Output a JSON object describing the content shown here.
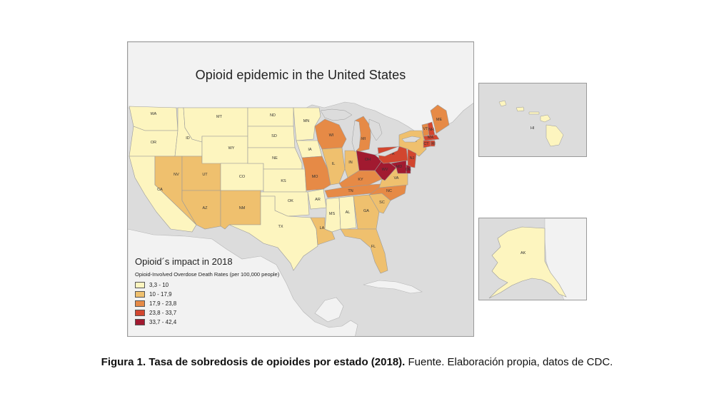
{
  "map": {
    "title": "Opioid epidemic in the United States",
    "colors": {
      "water": "#dcdcdc",
      "land_other": "#f2f2f2",
      "border": "#9a9a9a"
    }
  },
  "legend": {
    "title": "Opioid´s impact in 2018",
    "subtitle": "Opioid-Involved Overdose Death Rates (per 100,000 people)",
    "items": [
      {
        "label": "3,3 - 10",
        "color": "#fdf5bf"
      },
      {
        "label": "10 - 17,9",
        "color": "#efc06e"
      },
      {
        "label": "17,9 - 23,8",
        "color": "#e68a46"
      },
      {
        "label": "23,8 - 33,7",
        "color": "#d2462f"
      },
      {
        "label": "33,7 - 42,4",
        "color": "#a11a30"
      }
    ]
  },
  "states": [
    {
      "abbr": "WA",
      "bin": 0
    },
    {
      "abbr": "OR",
      "bin": 0
    },
    {
      "abbr": "CA",
      "bin": 0
    },
    {
      "abbr": "ID",
      "bin": 0
    },
    {
      "abbr": "NV",
      "bin": 1
    },
    {
      "abbr": "UT",
      "bin": 1
    },
    {
      "abbr": "AZ",
      "bin": 1
    },
    {
      "abbr": "MT",
      "bin": 0
    },
    {
      "abbr": "WY",
      "bin": 0
    },
    {
      "abbr": "CO",
      "bin": 0
    },
    {
      "abbr": "NM",
      "bin": 1
    },
    {
      "abbr": "ND",
      "bin": 0
    },
    {
      "abbr": "SD",
      "bin": 0
    },
    {
      "abbr": "NE",
      "bin": 0
    },
    {
      "abbr": "KS",
      "bin": 0
    },
    {
      "abbr": "OK",
      "bin": 0
    },
    {
      "abbr": "TX",
      "bin": 0
    },
    {
      "abbr": "MN",
      "bin": 0
    },
    {
      "abbr": "IA",
      "bin": 0
    },
    {
      "abbr": "MO",
      "bin": 2
    },
    {
      "abbr": "AR",
      "bin": 0
    },
    {
      "abbr": "LA",
      "bin": 1
    },
    {
      "abbr": "WI",
      "bin": 2
    },
    {
      "abbr": "IL",
      "bin": 1
    },
    {
      "abbr": "MI",
      "bin": 2
    },
    {
      "abbr": "IN",
      "bin": 1
    },
    {
      "abbr": "KY",
      "bin": 2
    },
    {
      "abbr": "TN",
      "bin": 2
    },
    {
      "abbr": "MS",
      "bin": 0
    },
    {
      "abbr": "AL",
      "bin": 0
    },
    {
      "abbr": "GA",
      "bin": 1
    },
    {
      "abbr": "FL",
      "bin": 1
    },
    {
      "abbr": "SC",
      "bin": 1
    },
    {
      "abbr": "NC",
      "bin": 2
    },
    {
      "abbr": "VA",
      "bin": 1
    },
    {
      "abbr": "WV",
      "bin": 4
    },
    {
      "abbr": "OH",
      "bin": 4
    },
    {
      "abbr": "PA",
      "bin": 3
    },
    {
      "abbr": "NY",
      "bin": 1
    },
    {
      "abbr": "VT",
      "bin": 2
    },
    {
      "abbr": "NH",
      "bin": 3
    },
    {
      "abbr": "ME",
      "bin": 2
    },
    {
      "abbr": "MA",
      "bin": 3
    },
    {
      "abbr": "CT",
      "bin": 3
    },
    {
      "abbr": "RI",
      "bin": 3
    },
    {
      "abbr": "NJ",
      "bin": 3
    },
    {
      "abbr": "DE",
      "bin": 4
    },
    {
      "abbr": "MD",
      "bin": 4
    },
    {
      "abbr": "HI",
      "bin": 0
    },
    {
      "abbr": "AK",
      "bin": 0
    }
  ],
  "caption": {
    "bold": "Figura 1. Tasa de sobredosis de opioides por estado (2018).",
    "normal": " Fuente. Elaboración propia, datos de CDC."
  }
}
